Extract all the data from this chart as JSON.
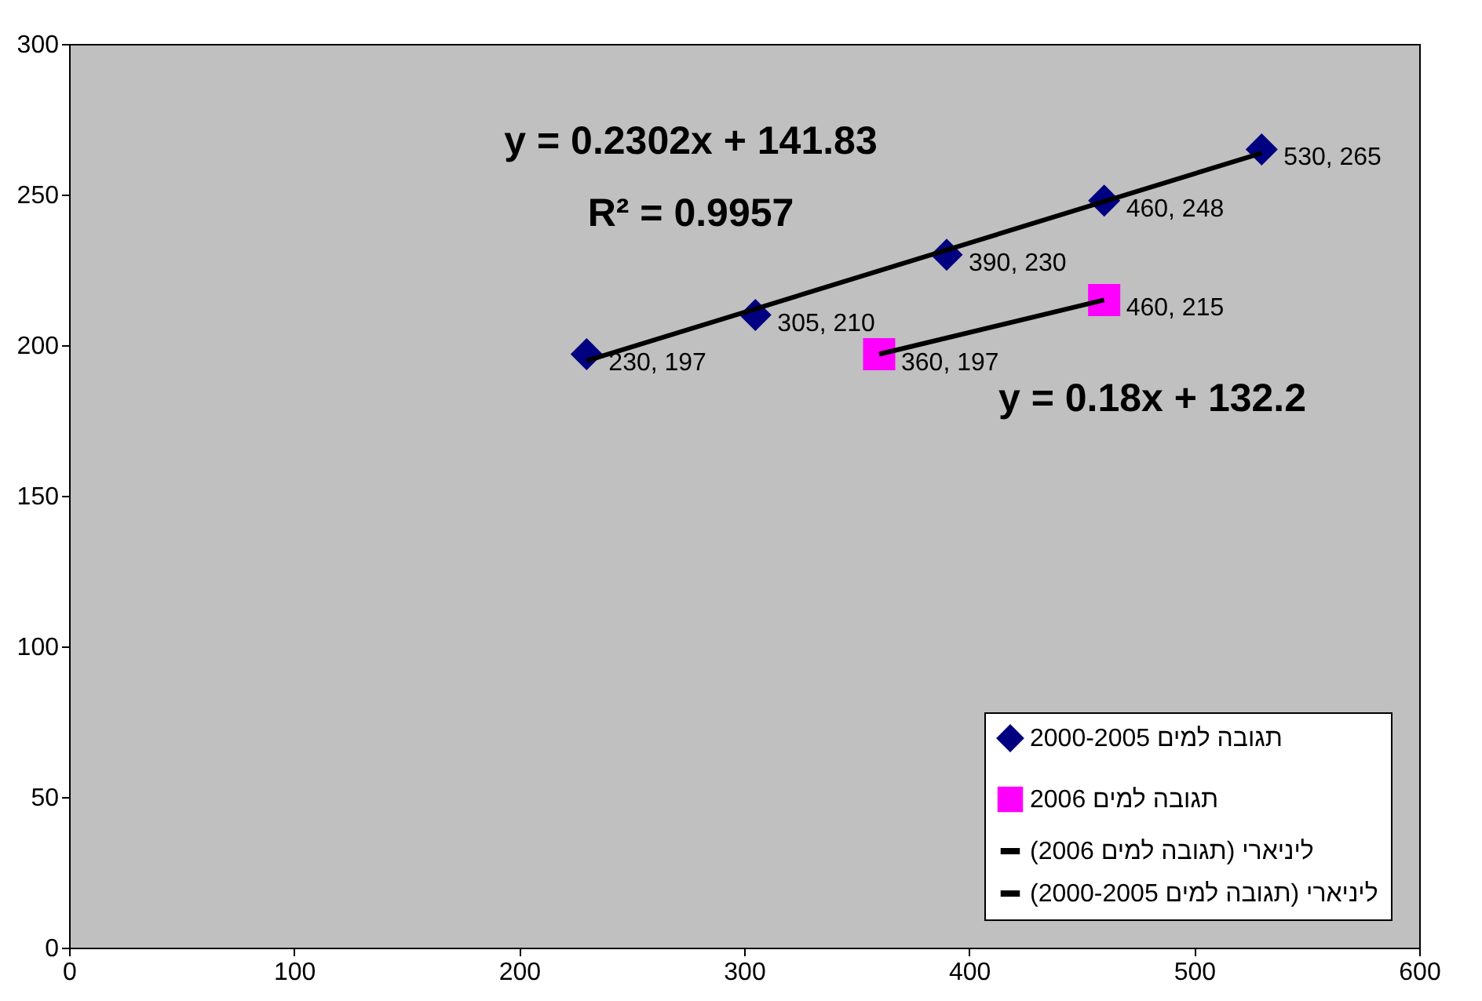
{
  "chart_data": {
    "type": "scatter",
    "xlim": [
      0,
      600
    ],
    "xticks": [
      0,
      100,
      200,
      300,
      400,
      500,
      600
    ],
    "ylim": [
      0,
      300
    ],
    "yticks": [
      0,
      50,
      100,
      150,
      200,
      250,
      300
    ],
    "grid": false,
    "legend": "bottom right",
    "series": [
      {
        "name": "תגובה למים 2000-2005",
        "type": "scatter",
        "marker": "diamond",
        "color": "#000080",
        "x": [
          230,
          305,
          390,
          460,
          530
        ],
        "values": [
          197,
          210,
          230,
          248,
          265
        ],
        "value_labels": [
          "230, 197",
          "305, 210",
          "390, 230",
          "460, 248",
          "530, 265"
        ]
      },
      {
        "name": "תגובה למים 2006",
        "type": "scatter",
        "marker": "square",
        "color": "#ff00ff",
        "x": [
          360,
          460
        ],
        "values": [
          197,
          215
        ],
        "value_labels": [
          "360, 197",
          "460, 215"
        ]
      },
      {
        "name": "ליניארי (תגובה למים 2006)",
        "type": "line",
        "line_style": "solid",
        "color": "#000000",
        "x": [
          360,
          460
        ],
        "values": [
          197,
          215
        ]
      },
      {
        "name": "ליניארי (תגובה למים 2000-2005)",
        "type": "line",
        "line_style": "solid",
        "color": "#000000",
        "x": [
          230,
          530
        ],
        "values": [
          194.8,
          263.8
        ]
      }
    ],
    "annotations": [
      "y = 0.2302x + 141.83",
      "R² = 0.9957",
      "y = 0.18x + 132.2"
    ]
  }
}
